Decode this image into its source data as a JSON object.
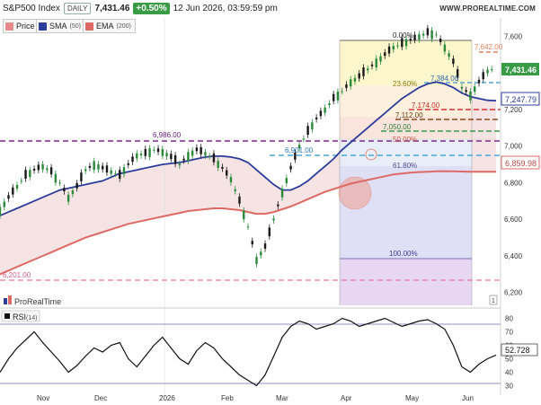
{
  "header": {
    "symbol": "S&P500 Index",
    "timeframe": "DAILY",
    "last_price": "7,431.46",
    "change_pct": "+0.50%",
    "datetime": "12 Jun 2026, 03:59:59 pm",
    "website": "WWW.PROREALTIME.COM"
  },
  "legend": {
    "price": "Price",
    "sma_label": "SMA",
    "sma_period": "(50)",
    "ema_label": "EMA",
    "ema_period": "(200)",
    "sma_color": "#2c3c9c",
    "ema_color": "#de6a66"
  },
  "rsi_legend": {
    "label": "RSI",
    "period": "(14)"
  },
  "watermark": "ProRealTime",
  "panel_icon": "1",
  "price_axis": {
    "ticks": [
      "7,600",
      "7,400",
      "7,200",
      "7,000",
      "6,800",
      "6,600",
      "6,400",
      "6,200"
    ],
    "tags": [
      {
        "text": "7,431.46",
        "color": "#3a9b46"
      },
      {
        "text": "7,247.79",
        "color": "#2c3c9c"
      },
      {
        "text": "6,859.98",
        "color": "#de6a66"
      }
    ]
  },
  "rsi_axis": {
    "ticks": [
      "80",
      "70",
      "60",
      "50",
      "40",
      "30"
    ],
    "value_tag": "52.728"
  },
  "x_axis": {
    "ticks": [
      "Nov",
      "Dec",
      "2026",
      "Feb",
      "Mar",
      "Apr",
      "May",
      "Jun"
    ]
  },
  "levels": {
    "fib_0": "0.00%",
    "fib_236": "23.60%",
    "fib_50": "50.00%",
    "fib_618": "61.80%",
    "fib_100": "100.00%",
    "p7642": "7,642.00",
    "p7384": "7,384.00",
    "p7174": "7,174.00",
    "p7112": "7,112.00",
    "p7050": "7,050.00",
    "p6986": "6,986.00",
    "p6901": "6,901.00",
    "p6201": "6,201.00"
  },
  "chart_data": {
    "type": "line",
    "title": "S&P500 Index",
    "y_range": [
      6130,
      7700
    ],
    "rsi_range": [
      25,
      85
    ],
    "series": [
      {
        "name": "Price",
        "x": [
          0,
          4,
          8,
          12,
          16,
          20,
          24,
          28,
          32,
          36,
          40,
          44,
          48,
          52,
          56,
          60,
          64,
          68,
          72,
          76,
          80,
          84,
          88,
          92,
          96,
          100,
          104,
          108,
          112,
          116,
          120,
          124,
          128,
          132,
          136,
          140,
          144,
          148,
          152,
          156,
          160,
          164,
          168,
          172,
          176,
          180,
          184,
          188,
          192,
          196,
          200,
          204,
          208,
          212,
          216,
          220,
          224,
          228,
          232
        ],
        "values": [
          6650,
          6720,
          6780,
          6840,
          6870,
          6890,
          6860,
          6800,
          6720,
          6780,
          6870,
          6900,
          6880,
          6860,
          6840,
          6900,
          6950,
          6960,
          6980,
          6970,
          6940,
          6900,
          6950,
          6980,
          6960,
          6930,
          6880,
          6820,
          6700,
          6560,
          6380,
          6450,
          6600,
          6750,
          6880,
          7000,
          7080,
          7150,
          7200,
          7260,
          7300,
          7350,
          7380,
          7420,
          7460,
          7500,
          7540,
          7560,
          7580,
          7600,
          7620,
          7610,
          7540,
          7460,
          7320,
          7280,
          7350,
          7410,
          7431
        ]
      },
      {
        "name": "SMA",
        "values": [
          6620,
          6640,
          6660,
          6680,
          6700,
          6720,
          6740,
          6760,
          6770,
          6780,
          6790,
          6800,
          6810,
          6830,
          6850,
          6860,
          6870,
          6880,
          6890,
          6900,
          6905,
          6910,
          6920,
          6930,
          6940,
          6945,
          6945,
          6940,
          6930,
          6910,
          6870,
          6830,
          6790,
          6760,
          6760,
          6780,
          6810,
          6850,
          6890,
          6930,
          6980,
          7020,
          7060,
          7100,
          7140,
          7180,
          7220,
          7260,
          7290,
          7320,
          7340,
          7350,
          7340,
          7320,
          7290,
          7270,
          7260,
          7250,
          7248
        ]
      },
      {
        "name": "EMA",
        "values": [
          6300,
          6320,
          6340,
          6360,
          6380,
          6400,
          6420,
          6440,
          6460,
          6480,
          6500,
          6515,
          6530,
          6545,
          6560,
          6575,
          6585,
          6595,
          6605,
          6615,
          6625,
          6635,
          6645,
          6650,
          6655,
          6660,
          6660,
          6655,
          6650,
          6640,
          6630,
          6630,
          6640,
          6655,
          6670,
          6690,
          6710,
          6730,
          6750,
          6765,
          6780,
          6795,
          6805,
          6815,
          6825,
          6835,
          6845,
          6850,
          6855,
          6858,
          6860,
          6862,
          6863,
          6862,
          6861,
          6860,
          6860,
          6860,
          6860
        ]
      }
    ]
  }
}
